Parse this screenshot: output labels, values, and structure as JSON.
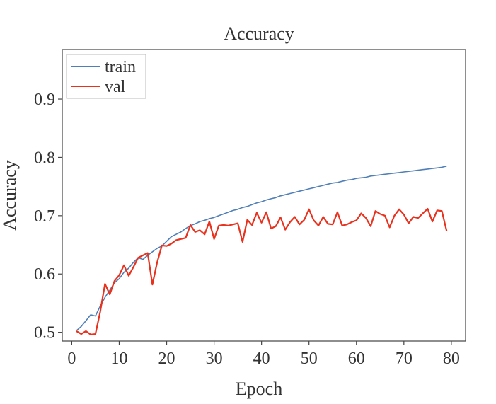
{
  "chart_data": {
    "type": "line",
    "title": "Accuracy",
    "xlabel": "Epoch",
    "ylabel": "Accuracy",
    "xlim": [
      -2,
      83
    ],
    "ylim": [
      0.485,
      0.985
    ],
    "xticks": [
      0,
      10,
      20,
      30,
      40,
      50,
      60,
      70,
      80
    ],
    "yticks": [
      0.5,
      0.6,
      0.7,
      0.8,
      0.9
    ],
    "ytick_labels": [
      "0.5",
      "0.6",
      "0.7",
      "0.8",
      "0.9"
    ],
    "legend": {
      "position": "top-left"
    },
    "grid": false,
    "series": [
      {
        "name": "train",
        "color": "#4f7fb7",
        "x": [
          1,
          2,
          3,
          4,
          5,
          6,
          7,
          8,
          9,
          10,
          11,
          12,
          13,
          14,
          15,
          16,
          17,
          18,
          19,
          20,
          21,
          22,
          23,
          24,
          25,
          26,
          27,
          28,
          29,
          30,
          31,
          32,
          33,
          34,
          35,
          36,
          37,
          38,
          39,
          40,
          41,
          42,
          43,
          44,
          45,
          46,
          47,
          48,
          49,
          50,
          51,
          52,
          53,
          54,
          55,
          56,
          57,
          58,
          59,
          60,
          61,
          62,
          63,
          64,
          65,
          66,
          67,
          68,
          69,
          70,
          71,
          72,
          73,
          74,
          75,
          76,
          77,
          78,
          79
        ],
        "values": [
          0.503,
          0.51,
          0.52,
          0.53,
          0.528,
          0.545,
          0.56,
          0.572,
          0.585,
          0.592,
          0.603,
          0.61,
          0.62,
          0.628,
          0.625,
          0.632,
          0.638,
          0.644,
          0.648,
          0.656,
          0.664,
          0.668,
          0.672,
          0.678,
          0.683,
          0.686,
          0.69,
          0.692,
          0.695,
          0.697,
          0.7,
          0.703,
          0.706,
          0.709,
          0.711,
          0.714,
          0.716,
          0.719,
          0.722,
          0.724,
          0.727,
          0.729,
          0.731,
          0.734,
          0.736,
          0.738,
          0.74,
          0.742,
          0.744,
          0.746,
          0.748,
          0.75,
          0.752,
          0.754,
          0.756,
          0.757,
          0.759,
          0.761,
          0.762,
          0.764,
          0.765,
          0.766,
          0.768,
          0.769,
          0.77,
          0.771,
          0.772,
          0.773,
          0.774,
          0.775,
          0.776,
          0.777,
          0.778,
          0.779,
          0.78,
          0.781,
          0.782,
          0.783,
          0.785
        ]
      },
      {
        "name": "val",
        "color": "#e8321e",
        "x": [
          1,
          2,
          3,
          4,
          5,
          6,
          7,
          8,
          9,
          10,
          11,
          12,
          13,
          14,
          15,
          16,
          17,
          18,
          19,
          20,
          21,
          22,
          23,
          24,
          25,
          26,
          27,
          28,
          29,
          30,
          31,
          32,
          33,
          34,
          35,
          36,
          37,
          38,
          39,
          40,
          41,
          42,
          43,
          44,
          45,
          46,
          47,
          48,
          49,
          50,
          51,
          52,
          53,
          54,
          55,
          56,
          57,
          58,
          59,
          60,
          61,
          62,
          63,
          64,
          65,
          66,
          67,
          68,
          69,
          70,
          71,
          72,
          73,
          74,
          75,
          76,
          77,
          78,
          79
        ],
        "values": [
          0.502,
          0.497,
          0.502,
          0.496,
          0.497,
          0.535,
          0.583,
          0.565,
          0.588,
          0.598,
          0.615,
          0.597,
          0.612,
          0.628,
          0.632,
          0.636,
          0.582,
          0.62,
          0.649,
          0.648,
          0.652,
          0.658,
          0.66,
          0.662,
          0.684,
          0.672,
          0.675,
          0.668,
          0.69,
          0.66,
          0.683,
          0.684,
          0.683,
          0.685,
          0.687,
          0.655,
          0.693,
          0.684,
          0.705,
          0.688,
          0.706,
          0.678,
          0.682,
          0.697,
          0.676,
          0.689,
          0.698,
          0.685,
          0.693,
          0.711,
          0.692,
          0.683,
          0.698,
          0.686,
          0.685,
          0.706,
          0.683,
          0.685,
          0.689,
          0.692,
          0.704,
          0.696,
          0.682,
          0.708,
          0.703,
          0.7,
          0.68,
          0.7,
          0.711,
          0.702,
          0.687,
          0.698,
          0.696,
          0.704,
          0.712,
          0.69,
          0.709,
          0.708,
          0.674
        ]
      }
    ]
  }
}
